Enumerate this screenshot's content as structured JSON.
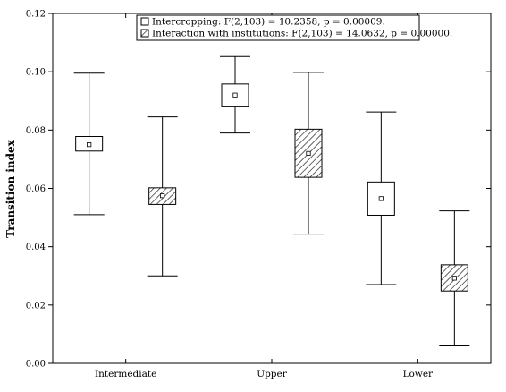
{
  "chart_data": {
    "type": "box",
    "xlabel": "",
    "ylabel": "Transition index",
    "ylim": [
      0.0,
      0.12
    ],
    "yticks": [
      "0.00",
      "0.02",
      "0.04",
      "0.06",
      "0.08",
      "0.10",
      "0.12"
    ],
    "categories": [
      "Intermediate",
      "Upper",
      "Lower"
    ],
    "legend_position": "top-center",
    "grid": false,
    "series": [
      {
        "name": "Intercropping: F(2,103) = 10.2358, p = 0.00009.",
        "fill": "plain",
        "boxes": [
          {
            "category": "Intermediate",
            "mean": 0.075,
            "box_low": 0.0728,
            "box_high": 0.0778,
            "whisker_low": 0.051,
            "whisker_high": 0.0995
          },
          {
            "category": "Upper",
            "mean": 0.092,
            "box_low": 0.0882,
            "box_high": 0.0958,
            "whisker_low": 0.079,
            "whisker_high": 0.1052
          },
          {
            "category": "Lower",
            "mean": 0.0565,
            "box_low": 0.0508,
            "box_high": 0.0622,
            "whisker_low": 0.027,
            "whisker_high": 0.0862
          }
        ]
      },
      {
        "name": "Interaction with institutions: F(2,103) = 14.0632, p = 0.00000.",
        "fill": "hatched",
        "boxes": [
          {
            "category": "Intermediate",
            "mean": 0.0575,
            "box_low": 0.0545,
            "box_high": 0.0602,
            "whisker_low": 0.03,
            "whisker_high": 0.0845
          },
          {
            "category": "Upper",
            "mean": 0.072,
            "box_low": 0.0638,
            "box_high": 0.0803,
            "whisker_low": 0.0443,
            "whisker_high": 0.0998
          },
          {
            "category": "Lower",
            "mean": 0.0292,
            "box_low": 0.0248,
            "box_high": 0.0338,
            "whisker_low": 0.006,
            "whisker_high": 0.0523
          }
        ]
      }
    ]
  }
}
